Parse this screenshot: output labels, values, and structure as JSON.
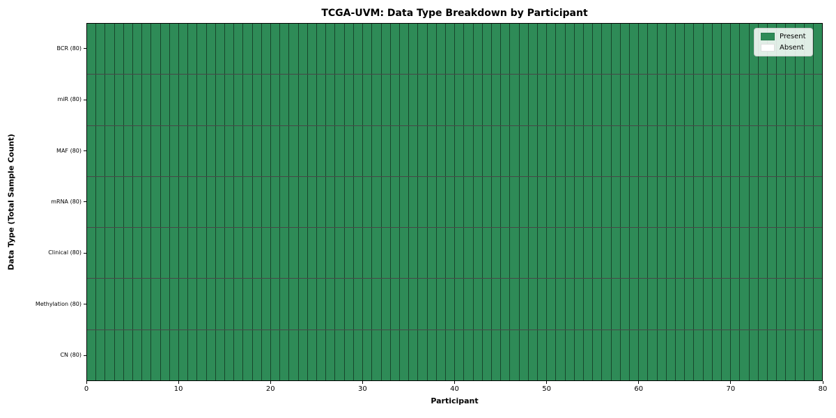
{
  "chart_data": {
    "type": "heatmap",
    "title": "TCGA-UVM: Data Type Breakdown by Participant",
    "xlabel": "Participant",
    "ylabel": "Data Type (Total Sample Count)",
    "xlim": [
      0,
      80
    ],
    "x_ticks": [
      0,
      10,
      20,
      30,
      40,
      50,
      60,
      70,
      80
    ],
    "n_participants": 80,
    "grid": true,
    "all_cells_present": true,
    "rows": [
      {
        "label": "BCR (80)",
        "data_type": "BCR",
        "total_samples": 80,
        "present_count": 80,
        "absent_count": 0
      },
      {
        "label": "miR (80)",
        "data_type": "miR",
        "total_samples": 80,
        "present_count": 80,
        "absent_count": 0
      },
      {
        "label": "MAF (80)",
        "data_type": "MAF",
        "total_samples": 80,
        "present_count": 80,
        "absent_count": 0
      },
      {
        "label": "mRNA (80)",
        "data_type": "mRNA",
        "total_samples": 80,
        "present_count": 80,
        "absent_count": 0
      },
      {
        "label": "Clinical (80)",
        "data_type": "Clinical",
        "total_samples": 80,
        "present_count": 80,
        "absent_count": 0
      },
      {
        "label": "Methylation (80)",
        "data_type": "Methylation",
        "total_samples": 80,
        "present_count": 80,
        "absent_count": 0
      },
      {
        "label": "CN (80)",
        "data_type": "CN",
        "total_samples": 80,
        "present_count": 80,
        "absent_count": 0
      }
    ],
    "legend": {
      "position": "upper right",
      "entries": [
        {
          "label": "Present",
          "color": "#2e8b57"
        },
        {
          "label": "Absent",
          "color": "#ffffff"
        }
      ]
    },
    "colors": {
      "present": "#2e8b57",
      "absent": "#ffffff",
      "cell_grid_line": "rgba(0,0,0,0.50)",
      "row_divider_line": "rgba(0,0,0,0.72)",
      "axis_line": "#000000"
    }
  }
}
